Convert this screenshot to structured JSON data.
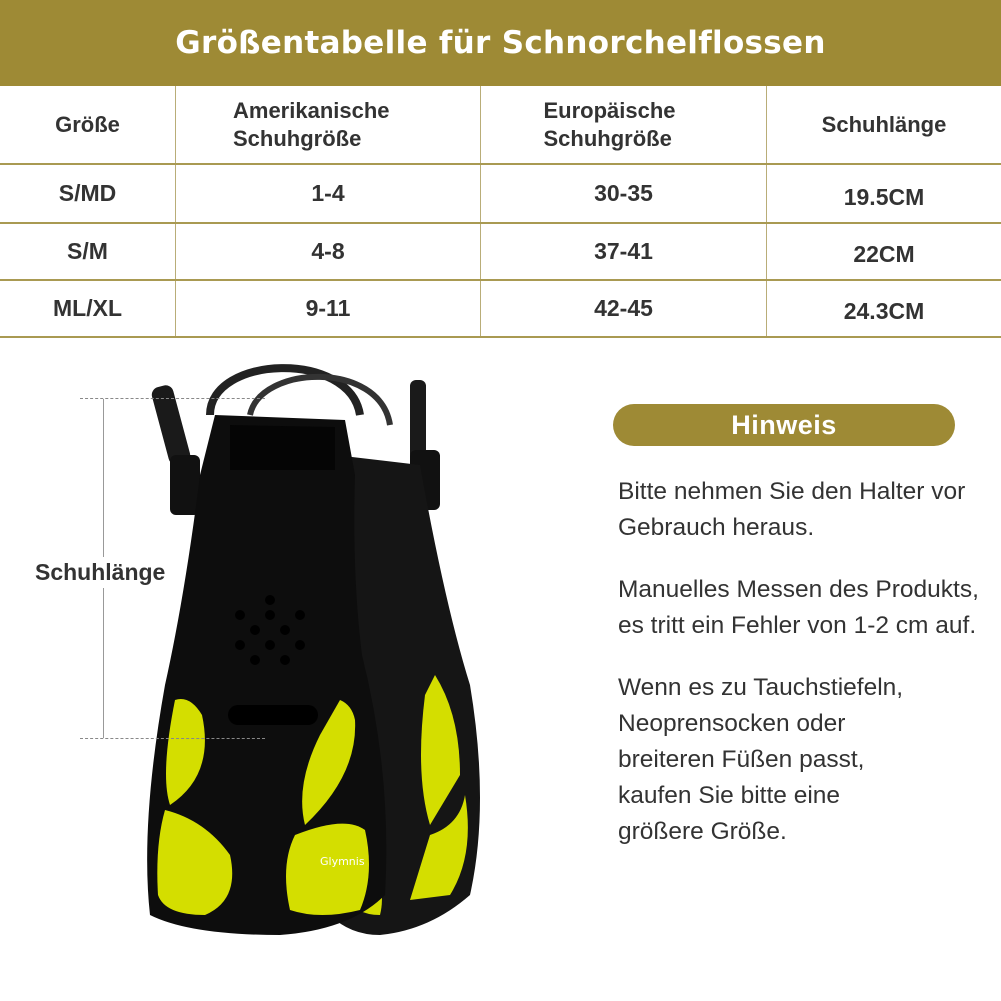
{
  "title": "Größentabelle für Schnorchelflossen",
  "table": {
    "headers": [
      "Größe",
      "Amerikanische Schuhgröße",
      "Europäische Schuhgröße",
      "Schuhlänge"
    ],
    "rows": [
      [
        "S/MD",
        "1-4",
        "30-35",
        "19.5CM"
      ],
      [
        "S/M",
        "4-8",
        "37-41",
        "22CM"
      ],
      [
        "ML/XL",
        "9-11",
        "42-45",
        "24.3CM"
      ]
    ]
  },
  "measure_label": "Schuhlänge",
  "product": {
    "brand_logo": "Glymnis",
    "fin_color": "#d4de00",
    "body_color": "#111111"
  },
  "notice": {
    "heading": "Hinweis",
    "paragraphs": [
      "Bitte nehmen Sie den Halter vor Gebrauch heraus.",
      "Manuelles Messen des Produkts, es tritt ein Fehler von 1-2 cm auf.",
      "Wenn es zu Tauchstiefeln, Neoprensocken oder breiteren Füßen passt, kaufen Sie bitte eine größere Größe."
    ]
  },
  "colors": {
    "accent": "#9e8a35",
    "text": "#333333"
  }
}
